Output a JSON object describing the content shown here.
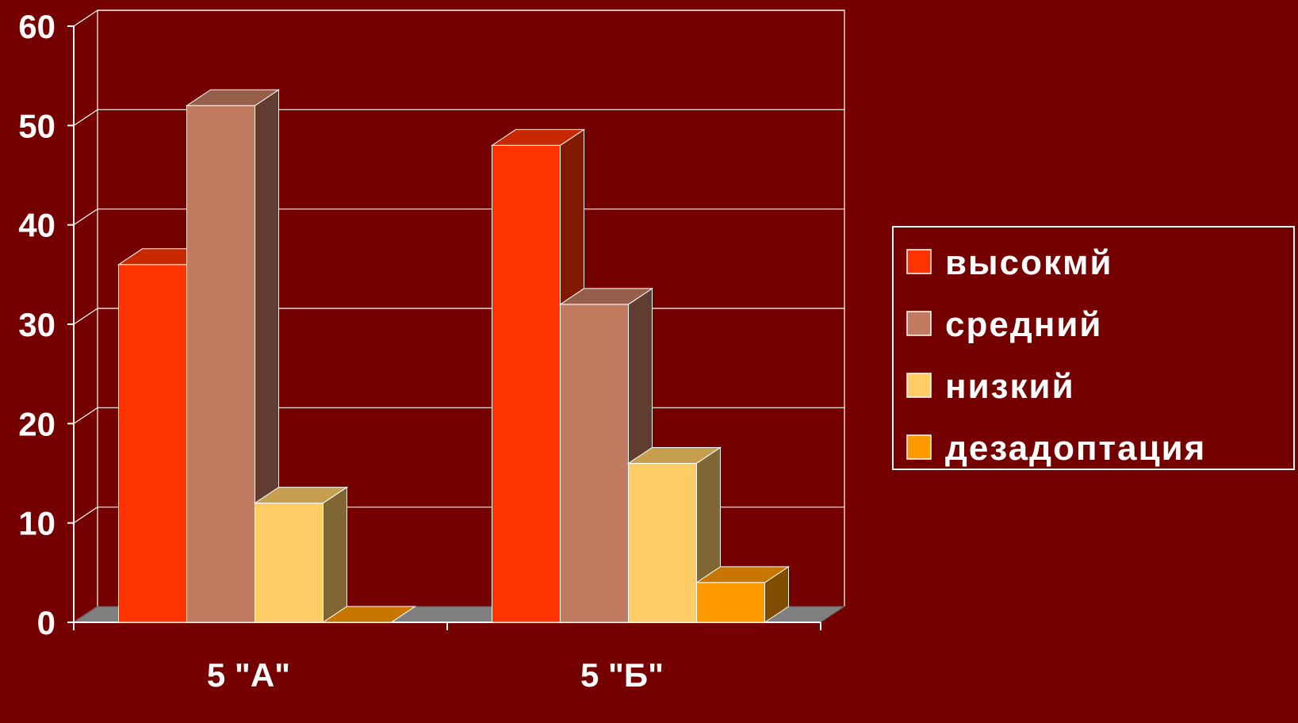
{
  "chart_data": {
    "type": "bar",
    "title": "",
    "xlabel": "",
    "ylabel": "",
    "categories": [
      "5 \"А\"",
      "5 \"Б\""
    ],
    "series": [
      {
        "name": "высокмй",
        "values": [
          36,
          48
        ],
        "color": "#ff3300"
      },
      {
        "name": "средний",
        "values": [
          52,
          32
        ],
        "color": "#c07a60"
      },
      {
        "name": "низкий",
        "values": [
          12,
          16
        ],
        "color": "#ffcc66"
      },
      {
        "name": "дезадоптация",
        "values": [
          0,
          4
        ],
        "color": "#ff9900"
      }
    ],
    "ylim": [
      0,
      60
    ],
    "yticks": [
      0,
      10,
      20,
      30,
      40,
      50,
      60
    ],
    "grid": true,
    "legend_position": "right",
    "style": "3d-clustered-bar",
    "background": "#740000",
    "floor_color": "#808080"
  }
}
